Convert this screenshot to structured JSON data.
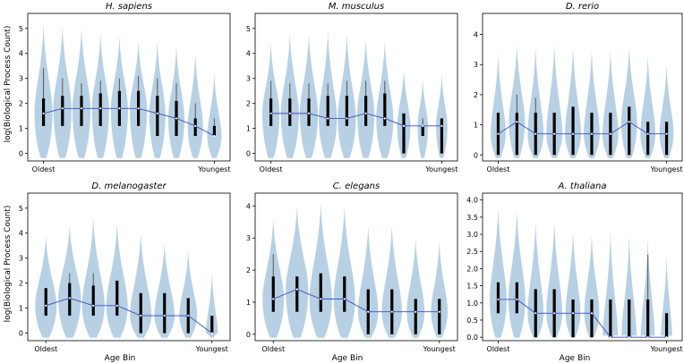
{
  "figure": {
    "ylabel": "log(Biological Process Count)",
    "xlabel": "Age Bin",
    "colors": {
      "violin": "#b3cde3",
      "line": "#3b4cc0",
      "bar": "#000000",
      "axis": "#000000"
    }
  },
  "chart_data": [
    {
      "type": "violin",
      "title": "H. sapiens",
      "xticklabels": [
        "Oldest",
        "Youngest"
      ],
      "ylim": [
        -0.3,
        5.6
      ],
      "yticks": [
        0,
        1,
        2,
        3,
        4,
        5
      ],
      "bins": 10,
      "medians": [
        1.6,
        1.8,
        1.8,
        1.8,
        1.8,
        1.8,
        1.6,
        1.4,
        1.1,
        0.7
      ],
      "q1": [
        1.1,
        1.1,
        1.1,
        1.1,
        1.1,
        1.1,
        0.7,
        0.7,
        0.7,
        0.7
      ],
      "q3": [
        2.2,
        2.3,
        2.3,
        2.4,
        2.5,
        2.5,
        2.3,
        2.1,
        1.4,
        1.1
      ],
      "max": [
        3.4,
        3.0,
        2.8,
        2.9,
        3.0,
        3.1,
        3.0,
        2.8,
        2.0,
        1.4
      ],
      "violin_top": [
        5.2,
        5.1,
        5.0,
        4.8,
        4.7,
        4.5,
        4.5,
        4.3,
        4.0,
        3.2
      ],
      "violin_width": [
        0.95,
        0.95,
        0.95,
        0.9,
        0.9,
        0.9,
        0.85,
        0.85,
        0.8,
        0.75
      ]
    },
    {
      "type": "violin",
      "title": "M. musculus",
      "xticklabels": [
        "Oldest",
        "Youngest"
      ],
      "ylim": [
        -0.3,
        5.6
      ],
      "yticks": [
        0,
        1,
        2,
        3,
        4,
        5
      ],
      "bins": 10,
      "medians": [
        1.6,
        1.6,
        1.6,
        1.4,
        1.4,
        1.6,
        1.4,
        1.1,
        1.1,
        1.1
      ],
      "q1": [
        1.1,
        1.1,
        1.1,
        1.1,
        1.1,
        1.1,
        1.1,
        0,
        0.7,
        0
      ],
      "q3": [
        2.2,
        2.2,
        2.2,
        2.3,
        2.3,
        2.3,
        2.4,
        1.6,
        1.1,
        1.4
      ],
      "max": [
        2.9,
        2.8,
        2.8,
        2.8,
        2.9,
        2.9,
        2.9,
        1.6,
        1.4,
        1.4
      ],
      "violin_top": [
        4.4,
        4.8,
        4.8,
        4.9,
        4.8,
        4.6,
        4.5,
        3.4,
        3.0,
        3.2
      ],
      "violin_width": [
        0.9,
        0.95,
        0.95,
        0.95,
        0.95,
        0.9,
        0.9,
        0.7,
        0.55,
        0.6
      ]
    },
    {
      "type": "violin",
      "title": "D. rerio",
      "xticklabels": [
        "Oldest",
        "Youngest"
      ],
      "ylim": [
        -0.2,
        4.7
      ],
      "yticks": [
        0,
        1,
        2,
        3,
        4
      ],
      "bins": 10,
      "medians": [
        0.7,
        1.1,
        0.7,
        0.7,
        0.7,
        0.7,
        0.7,
        1.1,
        0.7,
        0.7
      ],
      "q1": [
        0,
        0,
        0,
        0,
        0,
        0,
        0,
        0,
        0,
        0
      ],
      "q3": [
        1.4,
        1.4,
        1.4,
        1.4,
        1.6,
        1.4,
        1.4,
        1.6,
        1.1,
        1.1
      ],
      "max": [
        1.4,
        2.0,
        1.9,
        1.4,
        1.6,
        1.4,
        1.4,
        1.6,
        1.1,
        1.1
      ],
      "violin_top": [
        3.4,
        3.7,
        3.6,
        3.7,
        3.6,
        3.5,
        3.5,
        3.6,
        3.3,
        3.0
      ],
      "violin_width": [
        0.8,
        0.85,
        0.85,
        0.85,
        0.85,
        0.85,
        0.85,
        0.85,
        0.8,
        0.75
      ]
    },
    {
      "type": "violin",
      "title": "D. melanogaster",
      "xticklabels": [
        "Oldest",
        "Youngest"
      ],
      "ylim": [
        -0.3,
        5.6
      ],
      "yticks": [
        0,
        1,
        2,
        3,
        4,
        5
      ],
      "bins": 8,
      "medians": [
        1.1,
        1.4,
        1.1,
        1.1,
        0.7,
        0.7,
        0.7,
        0
      ],
      "q1": [
        0.7,
        0.7,
        0.7,
        0.7,
        0,
        0,
        0,
        0
      ],
      "q3": [
        1.8,
        2.0,
        1.9,
        2.1,
        1.6,
        1.6,
        1.4,
        0.7
      ],
      "max": [
        1.8,
        2.4,
        2.4,
        2.1,
        1.6,
        1.6,
        1.4,
        0.7
      ],
      "violin_top": [
        3.9,
        4.3,
        4.6,
        4.4,
        4.0,
        3.6,
        3.3,
        2.4
      ],
      "violin_width": [
        0.9,
        0.95,
        0.95,
        0.9,
        0.9,
        0.85,
        0.75,
        0.5
      ]
    },
    {
      "type": "violin",
      "title": "C. elegans",
      "xticklabels": [
        "Oldest",
        "Youngest"
      ],
      "ylim": [
        -0.2,
        4.4
      ],
      "yticks": [
        0,
        1,
        2,
        3,
        4
      ],
      "bins": 8,
      "medians": [
        1.1,
        1.4,
        1.1,
        1.1,
        0.7,
        0.7,
        0.7,
        0.7
      ],
      "q1": [
        0.7,
        0.7,
        0.7,
        0.7,
        0,
        0,
        0,
        0
      ],
      "q3": [
        1.8,
        1.8,
        1.9,
        1.8,
        1.4,
        1.4,
        1.1,
        1.1
      ],
      "max": [
        2.5,
        1.8,
        1.9,
        1.8,
        1.4,
        1.4,
        1.1,
        1.1
      ],
      "violin_top": [
        3.6,
        4.0,
        4.1,
        4.0,
        3.4,
        3.4,
        3.0,
        2.9
      ],
      "violin_width": [
        0.9,
        0.95,
        0.95,
        0.9,
        0.85,
        0.85,
        0.75,
        0.7
      ]
    },
    {
      "type": "violin",
      "title": "A. thaliana",
      "xticklabels": [
        "Oldest",
        "Youngest"
      ],
      "ylim": [
        -0.1,
        4.2
      ],
      "yticks": [
        0.0,
        0.5,
        1.0,
        1.5,
        2.0,
        2.5,
        3.0,
        3.5,
        4.0
      ],
      "bins": 10,
      "medians": [
        1.1,
        1.1,
        0.7,
        0.7,
        0.7,
        0.7,
        0,
        0,
        0,
        0
      ],
      "q1": [
        0.7,
        0.7,
        0,
        0,
        0,
        0,
        0,
        0,
        0,
        0
      ],
      "q3": [
        1.6,
        1.6,
        1.4,
        1.4,
        1.1,
        1.1,
        1.1,
        1.1,
        1.1,
        0.7
      ],
      "max": [
        1.6,
        1.6,
        1.4,
        1.4,
        1.1,
        1.1,
        1.1,
        1.1,
        2.4,
        0.7
      ],
      "violin_top": [
        3.8,
        3.7,
        3.4,
        3.4,
        3.1,
        3.0,
        3.1,
        3.0,
        2.9,
        2.4
      ],
      "violin_width": [
        0.9,
        0.9,
        0.85,
        0.85,
        0.8,
        0.8,
        0.8,
        0.8,
        0.75,
        0.6
      ]
    }
  ]
}
